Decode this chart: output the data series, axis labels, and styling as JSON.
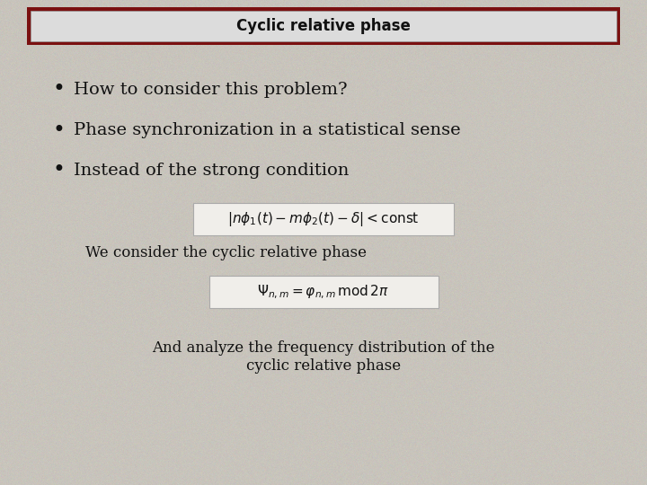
{
  "title": "Cyclic relative phase",
  "background_color": "#c8c4bc",
  "title_box_fill_top": "#e8e8e8",
  "title_box_fill_bot": "#c0beba",
  "title_box_edge_outer": "#7a1010",
  "title_fontsize": 12,
  "bullet_items": [
    "How to consider this problem?",
    "Phase synchronization in a statistical sense",
    "Instead of the strong condition"
  ],
  "bullet_fontsize": 14,
  "formula1_text": "$|n\\phi_1(t) - m\\phi_2(t) - \\delta| < \\mathrm{const}$",
  "formula1_box_fill": "#f0eeea",
  "formula1_box_edge": "#aaaaaa",
  "label_cyclic": "We consider the cyclic relative phase",
  "formula2_text": "$\\Psi_{n,m} = \\varphi_{n,m} \\, \\mathrm{mod} \\, 2\\pi$",
  "formula2_box_fill": "#f0eeea",
  "formula2_box_edge": "#aaaaaa",
  "label_analyze_1": "And analyze the frequency distribution of the",
  "label_analyze_2": "cyclic relative phase",
  "text_color": "#111111",
  "body_fontsize": 12,
  "formula_fontsize": 11,
  "noise_seed": 42,
  "noise_alpha": 0.18
}
